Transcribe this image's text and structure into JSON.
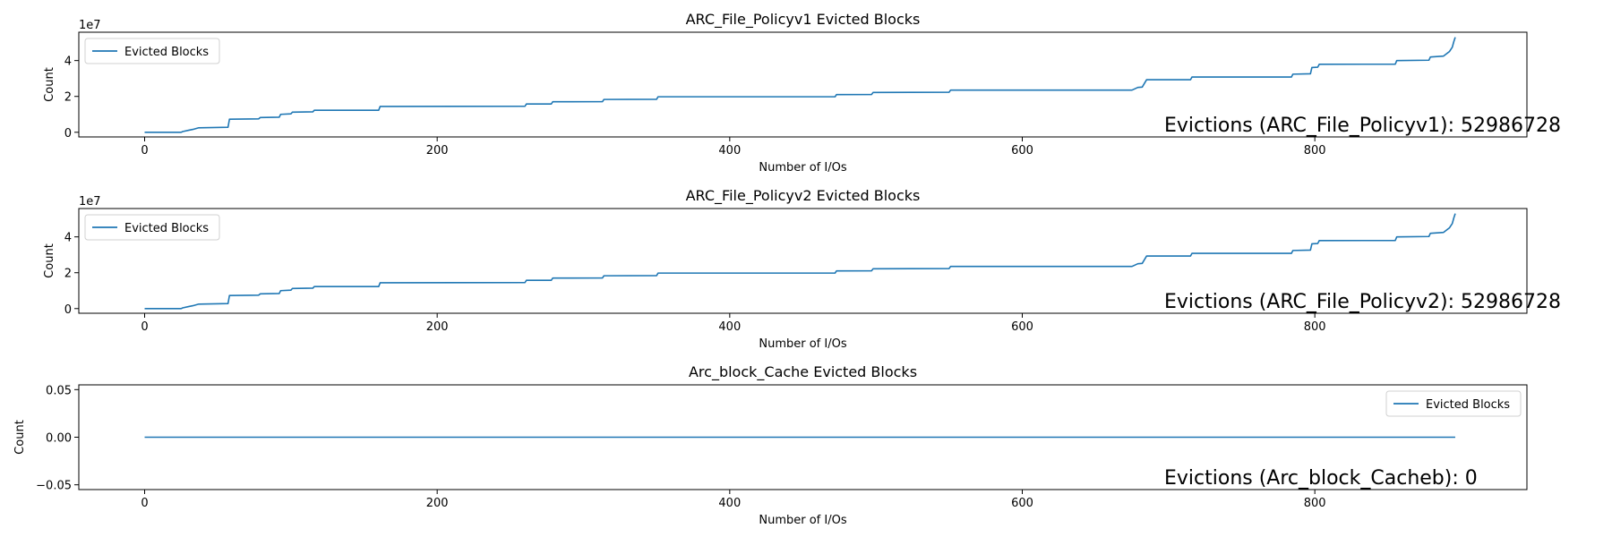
{
  "chart_data": [
    {
      "type": "line",
      "title": "ARC_File_Policyv1 Evicted Blocks",
      "xlabel": "Number of I/Os",
      "ylabel": "Count",
      "xlim": [
        -45,
        945
      ],
      "ylim": [
        -2600000,
        55800000
      ],
      "x_ticks": [
        0,
        200,
        400,
        600,
        800
      ],
      "y_ticks": [
        0,
        20000000,
        40000000
      ],
      "y_tick_labels": [
        "0",
        "2",
        "4"
      ],
      "y_offset_label": "1e7",
      "legend": {
        "position": "upper-left",
        "entries": [
          "Evicted Blocks"
        ]
      },
      "annotation": "Evictions (ARC_File_Policyv1): 52986728",
      "grid": false,
      "series": [
        {
          "name": "Evicted Blocks",
          "color": "#1f77b4",
          "points": [
            [
              0,
              0
            ],
            [
              25,
              0
            ],
            [
              26,
              400000
            ],
            [
              30,
              1100000
            ],
            [
              33,
              1600000
            ],
            [
              37,
              2500000
            ],
            [
              57,
              2800000
            ],
            [
              58,
              7300000
            ],
            [
              78,
              7500000
            ],
            [
              79,
              8200000
            ],
            [
              92,
              8400000
            ],
            [
              93,
              10000000
            ],
            [
              100,
              10300000
            ],
            [
              101,
              11200000
            ],
            [
              115,
              11400000
            ],
            [
              116,
              12300000
            ],
            [
              160,
              12300000
            ],
            [
              161,
              14400000
            ],
            [
              260,
              14500000
            ],
            [
              261,
              15800000
            ],
            [
              278,
              15800000
            ],
            [
              279,
              17000000
            ],
            [
              313,
              17100000
            ],
            [
              314,
              18300000
            ],
            [
              350,
              18400000
            ],
            [
              351,
              19800000
            ],
            [
              472,
              19800000
            ],
            [
              473,
              21000000
            ],
            [
              497,
              21100000
            ],
            [
              498,
              22200000
            ],
            [
              550,
              22300000
            ],
            [
              551,
              23500000
            ],
            [
              675,
              23500000
            ],
            [
              679,
              25000000
            ],
            [
              682,
              25200000
            ],
            [
              685,
              29300000
            ],
            [
              715,
              29300000
            ],
            [
              716,
              30800000
            ],
            [
              784,
              30800000
            ],
            [
              785,
              32400000
            ],
            [
              797,
              32600000
            ],
            [
              798,
              36100000
            ],
            [
              802,
              36300000
            ],
            [
              803,
              37900000
            ],
            [
              855,
              38000000
            ],
            [
              856,
              40000000
            ],
            [
              878,
              40200000
            ],
            [
              879,
              42000000
            ],
            [
              888,
              42500000
            ],
            [
              892,
              45000000
            ],
            [
              894,
              47500000
            ],
            [
              895,
              50500000
            ],
            [
              896,
              52986728
            ]
          ]
        }
      ]
    },
    {
      "type": "line",
      "title": "ARC_File_Policyv2 Evicted Blocks",
      "xlabel": "Number of I/Os",
      "ylabel": "Count",
      "xlim": [
        -45,
        945
      ],
      "ylim": [
        -2600000,
        55800000
      ],
      "x_ticks": [
        0,
        200,
        400,
        600,
        800
      ],
      "y_ticks": [
        0,
        20000000,
        40000000
      ],
      "y_tick_labels": [
        "0",
        "2",
        "4"
      ],
      "y_offset_label": "1e7",
      "legend": {
        "position": "upper-left",
        "entries": [
          "Evicted Blocks"
        ]
      },
      "annotation": "Evictions (ARC_File_Policyv2): 52986728",
      "grid": false,
      "series": [
        {
          "name": "Evicted Blocks",
          "color": "#1f77b4",
          "points": [
            [
              0,
              0
            ],
            [
              25,
              0
            ],
            [
              26,
              400000
            ],
            [
              30,
              1100000
            ],
            [
              33,
              1600000
            ],
            [
              37,
              2500000
            ],
            [
              57,
              2800000
            ],
            [
              58,
              7300000
            ],
            [
              78,
              7500000
            ],
            [
              79,
              8200000
            ],
            [
              92,
              8400000
            ],
            [
              93,
              10000000
            ],
            [
              100,
              10300000
            ],
            [
              101,
              11200000
            ],
            [
              115,
              11400000
            ],
            [
              116,
              12300000
            ],
            [
              160,
              12300000
            ],
            [
              161,
              14400000
            ],
            [
              260,
              14500000
            ],
            [
              261,
              15800000
            ],
            [
              278,
              15800000
            ],
            [
              279,
              17000000
            ],
            [
              313,
              17100000
            ],
            [
              314,
              18300000
            ],
            [
              350,
              18400000
            ],
            [
              351,
              19800000
            ],
            [
              472,
              19800000
            ],
            [
              473,
              21000000
            ],
            [
              497,
              21100000
            ],
            [
              498,
              22200000
            ],
            [
              550,
              22300000
            ],
            [
              551,
              23500000
            ],
            [
              675,
              23500000
            ],
            [
              679,
              25000000
            ],
            [
              682,
              25200000
            ],
            [
              685,
              29300000
            ],
            [
              715,
              29300000
            ],
            [
              716,
              30800000
            ],
            [
              784,
              30800000
            ],
            [
              785,
              32400000
            ],
            [
              797,
              32600000
            ],
            [
              798,
              36100000
            ],
            [
              802,
              36300000
            ],
            [
              803,
              37900000
            ],
            [
              855,
              38000000
            ],
            [
              856,
              40000000
            ],
            [
              878,
              40200000
            ],
            [
              879,
              42000000
            ],
            [
              888,
              42500000
            ],
            [
              892,
              45000000
            ],
            [
              894,
              47500000
            ],
            [
              895,
              50500000
            ],
            [
              896,
              52986728
            ]
          ]
        }
      ]
    },
    {
      "type": "line",
      "title": "Arc_block_Cache Evicted Blocks",
      "xlabel": "Number of I/Os",
      "ylabel": "Count",
      "xlim": [
        -45,
        945
      ],
      "ylim": [
        -0.055,
        0.055
      ],
      "x_ticks": [
        0,
        200,
        400,
        600,
        800
      ],
      "y_ticks": [
        -0.05,
        0,
        0.05
      ],
      "y_tick_labels": [
        "−0.05",
        "0.00",
        "0.05"
      ],
      "y_offset_label": "",
      "legend": {
        "position": "upper-right",
        "entries": [
          "Evicted Blocks"
        ]
      },
      "annotation": "Evictions (Arc_block_Cacheb): 0",
      "grid": false,
      "series": [
        {
          "name": "Evicted Blocks",
          "color": "#1f77b4",
          "points": [
            [
              0,
              0
            ],
            [
              896,
              0
            ]
          ]
        }
      ]
    }
  ]
}
